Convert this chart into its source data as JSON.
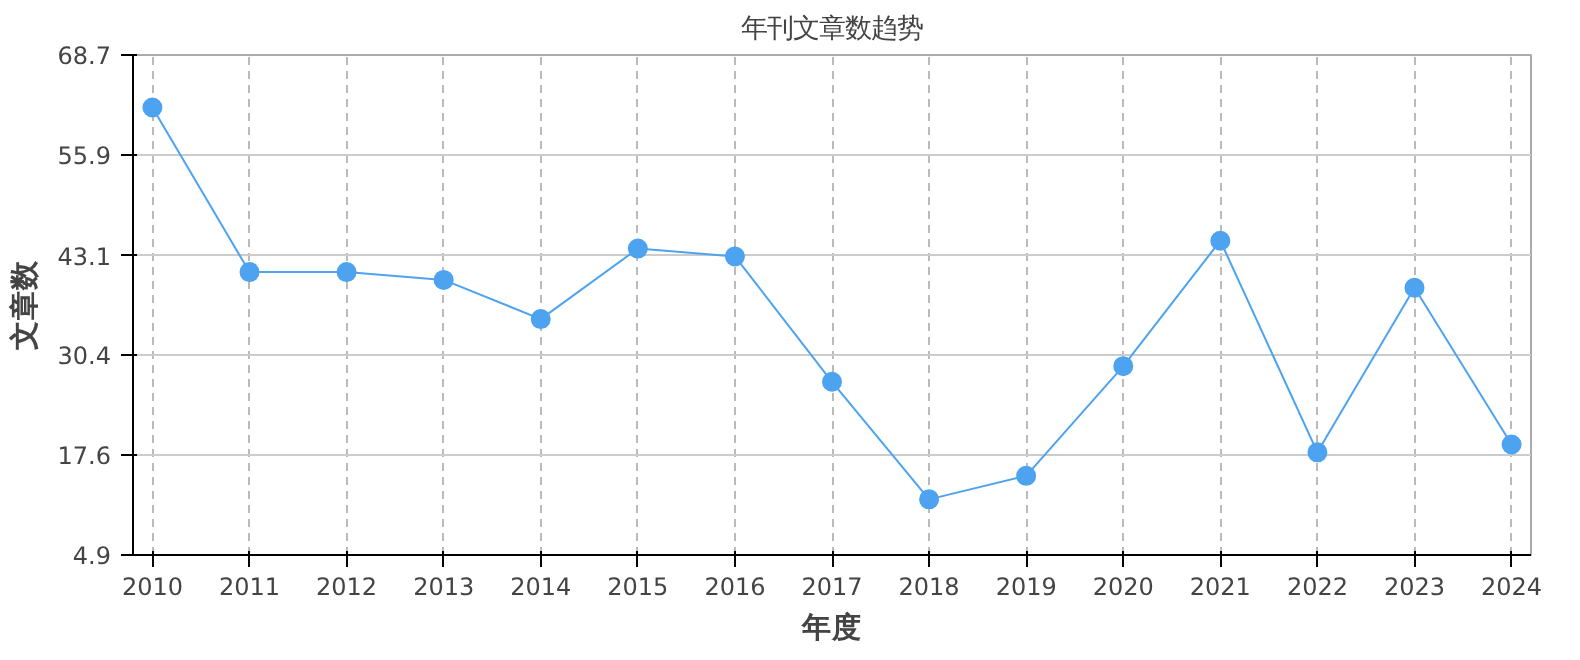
{
  "chart_data": {
    "type": "line",
    "title": "年刊文章数趋势",
    "xlabel": "年度",
    "ylabel": "文章数",
    "categories": [
      "2010",
      "2011",
      "2012",
      "2013",
      "2014",
      "2015",
      "2016",
      "2017",
      "2018",
      "2019",
      "2020",
      "2021",
      "2022",
      "2023",
      "2024"
    ],
    "series": [
      {
        "color": "#4da3f0",
        "values": [
          62,
          41,
          41,
          40,
          35,
          44,
          43,
          27,
          12,
          15,
          29,
          45,
          18,
          39,
          19
        ]
      }
    ],
    "ylim": [
      4.9,
      68.7
    ],
    "yticks": [
      4.9,
      17.6,
      30.4,
      43.1,
      55.9,
      68.7
    ],
    "grid": true,
    "marker": "circle",
    "line_style": "solid"
  }
}
